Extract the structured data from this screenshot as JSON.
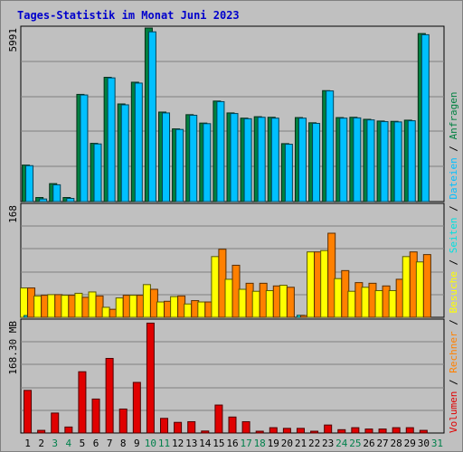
{
  "chart_data": {
    "type": "bar",
    "title": "Tages-Statistik im Monat Juni 2023",
    "categories": [
      "1",
      "2",
      "3",
      "4",
      "5",
      "6",
      "7",
      "8",
      "9",
      "10",
      "11",
      "12",
      "13",
      "14",
      "15",
      "16",
      "17",
      "18",
      "19",
      "20",
      "21",
      "22",
      "23",
      "24",
      "25",
      "26",
      "27",
      "28",
      "29",
      "30",
      "31"
    ],
    "weekend_days": [
      "3",
      "4",
      "10",
      "11",
      "17",
      "18",
      "24",
      "25",
      "31"
    ],
    "panels": [
      {
        "name": "requests-files",
        "max_label": "5991",
        "ylim": [
          0,
          5991
        ],
        "series": [
          {
            "name": "Anfragen",
            "color": "#008040",
            "values": [
              1260,
              140,
              620,
              140,
              3700,
              2010,
              4290,
              3370,
              4120,
              5990,
              3090,
              2510,
              3000,
              2710,
              3470,
              3060,
              2880,
              2930,
              2910,
              2000,
              2900,
              2720,
              3830,
              2900,
              2910,
              2840,
              2780,
              2770,
              2810,
              5800,
              0
            ]
          },
          {
            "name": "Dateien",
            "color": "#00c0ff",
            "values": [
              1240,
              90,
              580,
              110,
              3680,
              1990,
              4270,
              3340,
              4090,
              5860,
              3060,
              2490,
              2980,
              2690,
              3450,
              3040,
              2860,
              2910,
              2880,
              1980,
              2880,
              2700,
              3820,
              2880,
              2890,
              2820,
              2760,
              2750,
              2790,
              5760,
              0
            ]
          }
        ]
      },
      {
        "name": "visits-sites",
        "max_label": "168",
        "ylim": [
          0,
          168
        ],
        "series": [
          {
            "name": "Besuche",
            "color": "#ffff00",
            "values": [
              44,
              32,
              34,
              33,
              36,
              38,
              15,
              29,
              33,
              49,
              23,
              31,
              20,
              23,
              91,
              57,
              42,
              39,
              40,
              48,
              0,
              98,
              100,
              58,
              39,
              45,
              40,
              40,
              91,
              83,
              0
            ]
          },
          {
            "name": "Seiten",
            "color": "#00e0e0",
            "values": [
              1,
              0,
              0,
              0,
              0,
              0,
              0,
              0,
              0,
              0,
              0,
              0,
              0,
              0,
              0,
              0,
              0,
              0,
              0,
              0,
              3,
              0,
              0,
              0,
              0,
              0,
              0,
              0,
              0,
              0,
              0
            ]
          },
          {
            "name": "Rechner",
            "color": "#ff8000",
            "values": [
              44,
              33,
              34,
              33,
              30,
              32,
              12,
              33,
              33,
              42,
              24,
              32,
              25,
              23,
              102,
              78,
              51,
              51,
              47,
              45,
              2,
              98,
              126,
              70,
              52,
              51,
              47,
              57,
              98,
              94,
              0
            ]
          }
        ]
      },
      {
        "name": "volume",
        "max_label": "168.30 MB",
        "ylim": [
          0,
          168.3
        ],
        "series": [
          {
            "name": "Volumen",
            "color": "#e00000",
            "values": [
              64,
              4,
              30,
              9,
              92,
              51,
              112,
              36,
              76,
              165,
              22,
              16,
              17,
              3,
              42,
              24,
              17,
              2,
              8,
              7,
              7,
              2,
              12,
              5,
              8,
              6,
              6,
              8,
              8,
              4,
              0
            ]
          }
        ]
      }
    ],
    "legend": [
      "Volumen",
      "Rechner",
      "Besuche",
      "Seiten",
      "Dateien",
      "Anfragen"
    ],
    "legend_placement": "right, vertical",
    "grid": true
  }
}
